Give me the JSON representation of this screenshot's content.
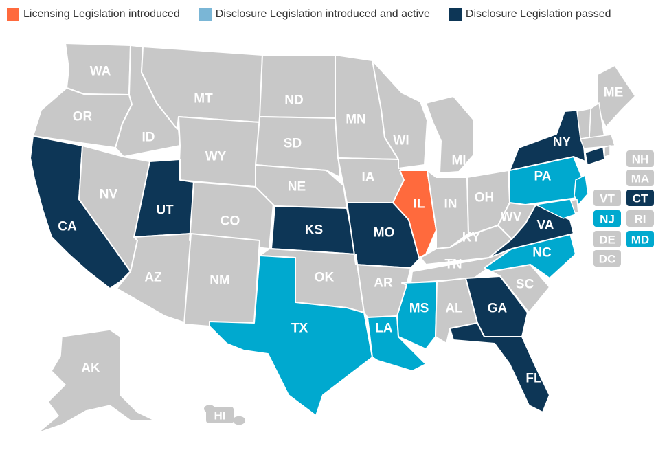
{
  "legend": {
    "licensing": {
      "label": "Licensing Legislation introduced",
      "color": "#ff6a3d"
    },
    "disclosure_active": {
      "label": "Disclosure Legislation introduced and active",
      "color": "#7ab6d6"
    },
    "disclosure_passed": {
      "label": "Disclosure Legislation passed",
      "color": "#0d3656"
    }
  },
  "colors": {
    "none": "#c8c8c8",
    "licensing": "#ff6a3d",
    "active_fill": "#00a9cf",
    "passed": "#0d3656",
    "border": "#ffffff"
  },
  "states": [
    {
      "code": "WA",
      "status": "none"
    },
    {
      "code": "OR",
      "status": "none"
    },
    {
      "code": "CA",
      "status": "passed"
    },
    {
      "code": "ID",
      "status": "none"
    },
    {
      "code": "NV",
      "status": "none"
    },
    {
      "code": "MT",
      "status": "none"
    },
    {
      "code": "WY",
      "status": "none"
    },
    {
      "code": "UT",
      "status": "passed"
    },
    {
      "code": "AZ",
      "status": "none"
    },
    {
      "code": "CO",
      "status": "none"
    },
    {
      "code": "NM",
      "status": "none"
    },
    {
      "code": "ND",
      "status": "none"
    },
    {
      "code": "SD",
      "status": "none"
    },
    {
      "code": "NE",
      "status": "none"
    },
    {
      "code": "KS",
      "status": "passed"
    },
    {
      "code": "OK",
      "status": "none"
    },
    {
      "code": "TX",
      "status": "active"
    },
    {
      "code": "MN",
      "status": "none"
    },
    {
      "code": "IA",
      "status": "none"
    },
    {
      "code": "MO",
      "status": "passed"
    },
    {
      "code": "AR",
      "status": "none"
    },
    {
      "code": "LA",
      "status": "active"
    },
    {
      "code": "WI",
      "status": "none"
    },
    {
      "code": "IL",
      "status": "licensing"
    },
    {
      "code": "MI",
      "status": "none"
    },
    {
      "code": "IN",
      "status": "none"
    },
    {
      "code": "OH",
      "status": "none"
    },
    {
      "code": "KY",
      "status": "none"
    },
    {
      "code": "TN",
      "status": "none"
    },
    {
      "code": "MS",
      "status": "active"
    },
    {
      "code": "AL",
      "status": "none"
    },
    {
      "code": "GA",
      "status": "passed"
    },
    {
      "code": "FL",
      "status": "passed"
    },
    {
      "code": "SC",
      "status": "none"
    },
    {
      "code": "NC",
      "status": "active"
    },
    {
      "code": "VA",
      "status": "passed"
    },
    {
      "code": "WV",
      "status": "none"
    },
    {
      "code": "PA",
      "status": "active"
    },
    {
      "code": "NY",
      "status": "passed"
    },
    {
      "code": "ME",
      "status": "none"
    },
    {
      "code": "AK",
      "status": "none"
    }
  ],
  "small_states": [
    {
      "code": "NH",
      "status": "none"
    },
    {
      "code": "MA",
      "status": "none"
    },
    {
      "code": "VT",
      "status": "none"
    },
    {
      "code": "CT",
      "status": "passed"
    },
    {
      "code": "NJ",
      "status": "active"
    },
    {
      "code": "RI",
      "status": "none"
    },
    {
      "code": "DE",
      "status": "none"
    },
    {
      "code": "MD",
      "status": "active"
    },
    {
      "code": "DC",
      "status": "none"
    },
    {
      "code": "HI",
      "status": "none"
    }
  ]
}
